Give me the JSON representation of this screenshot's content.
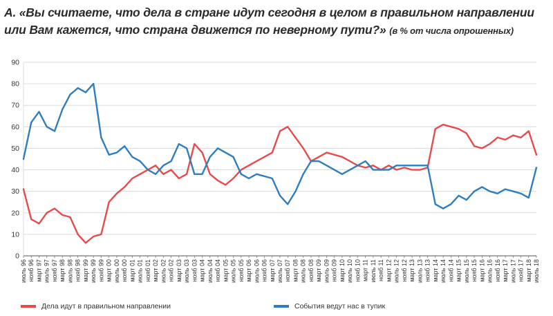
{
  "title": {
    "main": "А. «Вы считаете, что дела в стране идут сегодня в целом в правильном направлении или Вам кажется, что страна движется по неверному пути?»",
    "sub": "(в % от числа опрошенных)"
  },
  "colors": {
    "right": "#e8494b",
    "wrong": "#2e7dbf",
    "grid": "#dcdcdc",
    "axis": "#555555"
  },
  "chart_data": {
    "type": "line",
    "ylim": [
      0,
      90
    ],
    "yticks": [
      0,
      10,
      20,
      30,
      40,
      50,
      60,
      70,
      80,
      90
    ],
    "grid": true,
    "legend_position": "bottom",
    "x_labels": [
      "июль 96",
      "нояб 96",
      "март 97",
      "июль 97",
      "нояб 97",
      "март 98",
      "июль 98",
      "нояб 98",
      "март 99",
      "июль 99",
      "нояб 99",
      "март 00",
      "июль 00",
      "нояб 00",
      "март 01",
      "июль 01",
      "нояб 01",
      "март 02",
      "июль 02",
      "нояб 02",
      "март 03",
      "июль 03",
      "нояб 03",
      "март 04",
      "июль 04",
      "нояб 04",
      "март 05",
      "июль 05",
      "нояб 05",
      "март 06",
      "июль 06",
      "нояб 06",
      "март 07",
      "июль 07",
      "нояб 07",
      "март 08",
      "июль 08",
      "нояб 08",
      "март 09",
      "июль 09",
      "нояб 09",
      "март 10",
      "июль 10",
      "нояб 10",
      "март 11",
      "июль 11",
      "нояб 11",
      "март 12",
      "июль 12",
      "нояб 12",
      "март 13",
      "июль 13",
      "нояб 13",
      "март 14",
      "июль 14",
      "нояб 14",
      "март 15",
      "июль 15",
      "нояб 15",
      "март 16",
      "июль 16",
      "нояб 16",
      "март 17",
      "июль 17",
      "нояб 17",
      "март 18",
      "июль 18"
    ],
    "series": [
      {
        "name": "Дела идут в правильном направлении",
        "color": "#e8494b",
        "values": [
          31,
          17,
          15,
          20,
          22,
          19,
          18,
          10,
          6,
          9,
          10,
          25,
          29,
          32,
          36,
          38,
          40,
          42,
          38,
          40,
          36,
          38,
          52,
          48,
          38,
          35,
          33,
          36,
          40,
          42,
          44,
          46,
          48,
          58,
          60,
          55,
          50,
          44,
          46,
          48,
          47,
          46,
          44,
          42,
          41,
          42,
          40,
          42,
          40,
          41,
          40,
          40,
          41,
          59,
          61,
          60,
          59,
          57,
          51,
          50,
          52,
          55,
          54,
          56,
          55,
          58,
          47
        ]
      },
      {
        "name": "События ведут нас в тупик",
        "color": "#2e7dbf",
        "values": [
          45,
          62,
          67,
          60,
          58,
          68,
          75,
          78,
          76,
          80,
          55,
          47,
          48,
          51,
          46,
          44,
          40,
          38,
          42,
          44,
          52,
          50,
          38,
          38,
          46,
          50,
          48,
          46,
          38,
          36,
          38,
          37,
          36,
          28,
          24,
          30,
          38,
          44,
          44,
          42,
          40,
          38,
          40,
          42,
          44,
          40,
          40,
          40,
          42,
          42,
          42,
          42,
          42,
          24,
          22,
          24,
          28,
          26,
          30,
          32,
          30,
          29,
          31,
          30,
          29,
          27,
          41
        ]
      }
    ]
  }
}
